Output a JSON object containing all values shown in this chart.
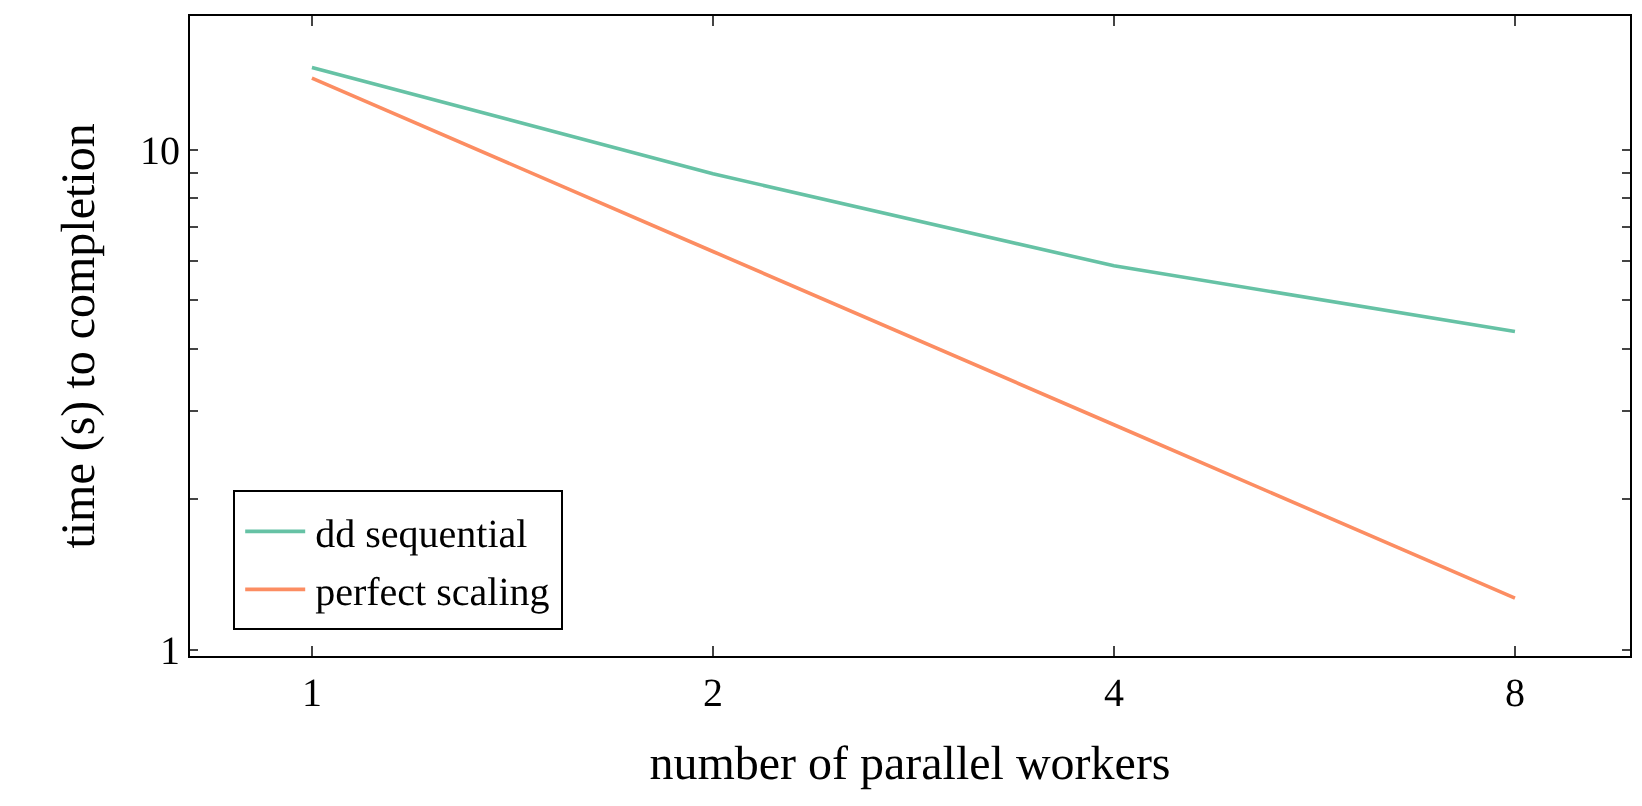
{
  "chart_data": {
    "type": "line",
    "xlabel": "number of parallel workers",
    "ylabel": "time (s) to completion",
    "log": "xy",
    "x": [
      1,
      2,
      4,
      8
    ],
    "series": [
      {
        "name": "dd sequential",
        "color": "#66c2a5",
        "values": [
          14.6,
          8.95,
          5.86,
          4.33
        ]
      },
      {
        "name": "perfect scaling",
        "color": "#fc8d62",
        "values": [
          13.9,
          6.26,
          2.82,
          1.27
        ]
      }
    ],
    "xlim": [
      0.81,
      9.76
    ],
    "ylim": [
      0.973,
      18.5
    ],
    "xticks": [
      1,
      2,
      4,
      8
    ],
    "yticks": [
      1,
      {
        "value": 2,
        "label": null
      },
      {
        "value": 3,
        "label": null
      },
      {
        "value": 4,
        "label": null
      },
      {
        "value": 5,
        "label": null
      },
      {
        "value": 6,
        "label": null
      },
      {
        "value": 7,
        "label": null
      },
      {
        "value": 8,
        "label": null
      },
      {
        "value": 9,
        "label": null
      },
      10
    ],
    "legend": "bottom left",
    "marker": "none",
    "line_style": "solid"
  }
}
